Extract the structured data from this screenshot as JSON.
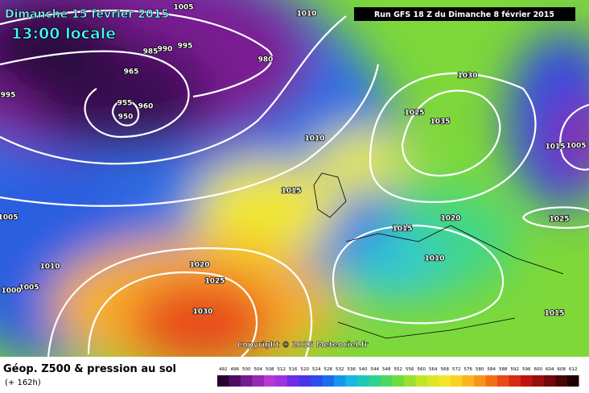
{
  "header": {
    "date": "Dimanche 15 février 2015",
    "time": "13:00 locale",
    "run": "Run GFS 18 Z du Dimanche 8 février 2015"
  },
  "copyright": "Copyright © 2015 Meteociel.fr",
  "footer": {
    "title": "Géop. Z500 & pression au sol",
    "lead": "(+ 162h)"
  },
  "legend": {
    "labels": [
      492,
      496,
      500,
      504,
      508,
      512,
      516,
      520,
      524,
      528,
      532,
      536,
      540,
      544,
      548,
      552,
      556,
      560,
      564,
      568,
      572,
      576,
      580,
      584,
      588,
      592,
      596,
      600,
      604,
      608,
      612
    ]
  },
  "isobar_labels": [
    1005,
    1010,
    995,
    990,
    985,
    980,
    965,
    955,
    960,
    950,
    995,
    1030,
    1025,
    1035,
    1010,
    1015,
    1005,
    1015,
    1020,
    1025,
    1015,
    1010,
    1020,
    1025,
    1030,
    1005,
    1010,
    1005,
    1000,
    1015
  ]
}
